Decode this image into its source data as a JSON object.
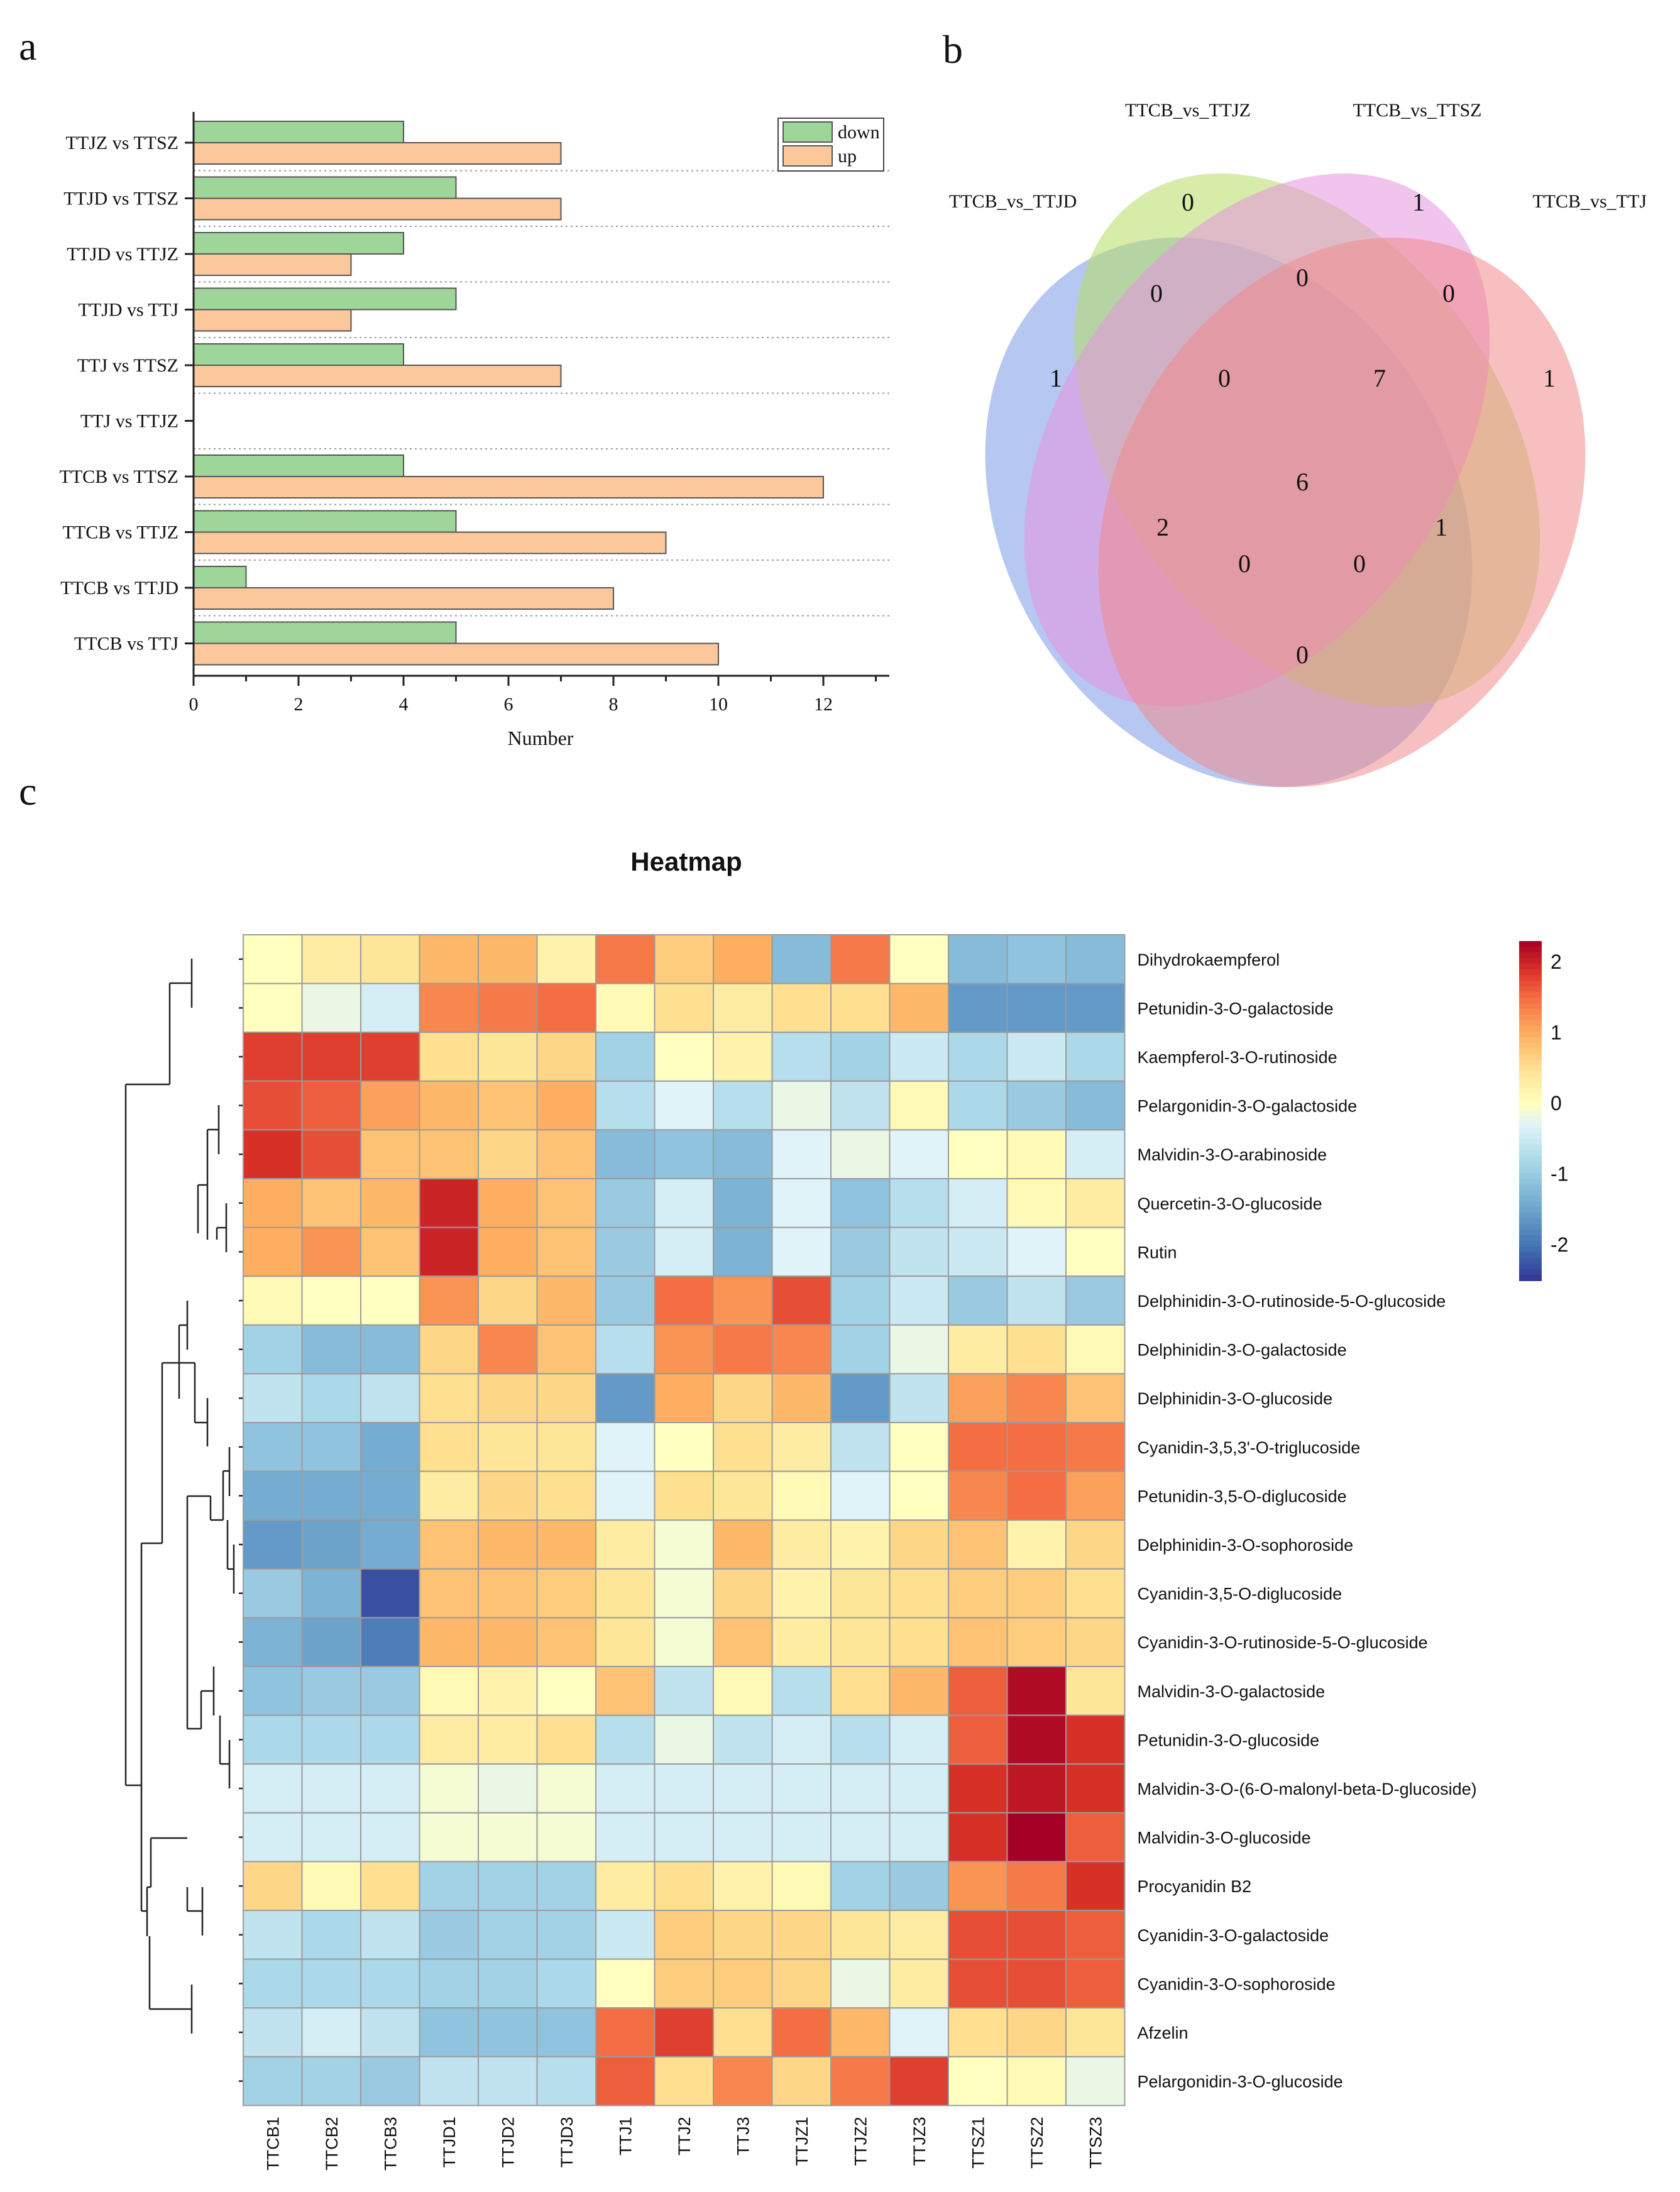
{
  "panels": {
    "a": "a",
    "b": "b",
    "c": "c"
  },
  "chart_data": [
    {
      "type": "bar",
      "orientation": "horizontal",
      "panel": "a",
      "title": "",
      "xlabel": "Number",
      "ylabel": "",
      "xlim": [
        0,
        13
      ],
      "xticks": [
        "0",
        "2",
        "4",
        "6",
        "8",
        "10",
        "12"
      ],
      "categories": [
        "TTJZ vs TTSZ",
        "TTJD vs TTSZ",
        "TTJD vs TTJZ",
        "TTJD vs TTJ",
        "TTJ vs TTSZ",
        "TTJ vs TTJZ",
        "TTCB vs TTSZ",
        "TTCB vs TTJZ",
        "TTCB vs TTJD",
        "TTCB vs TTJ"
      ],
      "series": [
        {
          "name": "down",
          "color": "#9ed69a",
          "values": [
            4,
            5,
            4,
            5,
            4,
            0,
            4,
            5,
            1,
            5
          ]
        },
        {
          "name": "up",
          "color": "#fbc79b",
          "values": [
            7,
            7,
            3,
            3,
            7,
            0,
            12,
            9,
            8,
            10
          ]
        }
      ],
      "legend": "top-right"
    },
    {
      "type": "venn",
      "panel": "b",
      "sets": [
        {
          "name": "TTCB_vs_TTJD",
          "color": "#7a9ae8"
        },
        {
          "name": "TTCB_vs_TTJZ",
          "color": "#b6dc62"
        },
        {
          "name": "TTCB_vs_TTSZ",
          "color": "#e594e0"
        },
        {
          "name": "TTCB_vs_TTJ",
          "color": "#f08a8c"
        }
      ],
      "regions": [
        {
          "id": "only_jz",
          "value": "0"
        },
        {
          "id": "only_sz",
          "value": "1"
        },
        {
          "id": "only_jd",
          "value": "1"
        },
        {
          "id": "only_j",
          "value": "1"
        },
        {
          "id": "jd_jz",
          "value": "0"
        },
        {
          "id": "jz_sz",
          "value": "0"
        },
        {
          "id": "sz_j",
          "value": "0"
        },
        {
          "id": "jd_jz_sz",
          "value": "0"
        },
        {
          "id": "jz_sz_j",
          "value": "7"
        },
        {
          "id": "all4",
          "value": "6"
        },
        {
          "id": "jd_sz",
          "value": "2"
        },
        {
          "id": "jz_j",
          "value": "1"
        },
        {
          "id": "jd_sz_j",
          "value": "0"
        },
        {
          "id": "jd_jz_j",
          "value": "0"
        },
        {
          "id": "jd_j",
          "value": "0"
        }
      ]
    },
    {
      "type": "heatmap",
      "panel": "c",
      "title": "Heatmap",
      "columns": [
        "TTCB1",
        "TTCB2",
        "TTCB3",
        "TTJD1",
        "TTJD2",
        "TTJD3",
        "TTJ1",
        "TTJ2",
        "TTJ3",
        "TTJZ1",
        "TTJZ2",
        "TTJZ3",
        "TTSZ1",
        "TTSZ2",
        "TTSZ3"
      ],
      "rows": [
        "Dihydrokaempferol",
        "Petunidin-3-O-galactoside",
        "Kaempferol-3-O-rutinoside",
        "Pelargonidin-3-O-galactoside",
        "Malvidin-3-O-arabinoside",
        "Quercetin-3-O-glucoside",
        "Rutin",
        "Delphinidin-3-O-rutinoside-5-O-glucoside",
        "Delphinidin-3-O-galactoside",
        "Delphinidin-3-O-glucoside",
        "Cyanidin-3,5,3'-O-triglucoside",
        "Petunidin-3,5-O-diglucoside",
        "Delphinidin-3-O-sophoroside",
        "Cyanidin-3,5-O-diglucoside",
        "Cyanidin-3-O-rutinoside-5-O-glucoside",
        "Malvidin-3-O-galactoside",
        "Petunidin-3-O-glucoside",
        "Malvidin-3-O-(6-O-malonyl-beta-D-glucoside)",
        "Malvidin-3-O-glucoside",
        "Procyanidin B2",
        "Cyanidin-3-O-galactoside",
        "Cyanidin-3-O-sophoroside",
        "Afzelin",
        "Pelargonidin-3-O-glucoside"
      ],
      "values": [
        [
          0.0,
          0.3,
          0.4,
          0.9,
          0.9,
          0.2,
          1.4,
          0.7,
          1.0,
          -1.2,
          1.4,
          0.0,
          -1.2,
          -1.1,
          -1.2
        ],
        [
          0.0,
          -0.2,
          -0.4,
          1.3,
          1.4,
          1.5,
          0.1,
          0.5,
          0.3,
          0.5,
          0.5,
          0.9,
          -1.6,
          -1.6,
          -1.6
        ],
        [
          1.8,
          1.8,
          1.8,
          0.5,
          0.4,
          0.6,
          -0.9,
          0.0,
          0.2,
          -0.7,
          -0.9,
          -0.5,
          -0.8,
          -0.5,
          -0.8
        ],
        [
          1.7,
          1.6,
          1.1,
          0.9,
          0.8,
          1.0,
          -0.7,
          -0.3,
          -0.7,
          -0.2,
          -0.6,
          0.1,
          -0.8,
          -1.0,
          -1.2
        ],
        [
          1.9,
          1.7,
          0.8,
          0.8,
          0.6,
          0.8,
          -1.2,
          -1.1,
          -1.2,
          -0.3,
          -0.2,
          -0.3,
          0.0,
          0.1,
          -0.4
        ],
        [
          1.0,
          0.8,
          0.9,
          2.0,
          1.0,
          0.8,
          -1.0,
          -0.4,
          -1.3,
          -0.3,
          -1.1,
          -0.7,
          -0.4,
          0.1,
          0.3
        ],
        [
          1.0,
          1.2,
          0.8,
          2.0,
          1.0,
          0.8,
          -1.0,
          -0.4,
          -1.3,
          -0.3,
          -1.0,
          -0.6,
          -0.5,
          -0.3,
          0.0
        ],
        [
          0.1,
          0.0,
          0.0,
          1.2,
          0.6,
          0.9,
          -1.0,
          1.5,
          1.2,
          1.7,
          -0.9,
          -0.5,
          -1.0,
          -0.6,
          -1.0
        ],
        [
          -0.9,
          -1.2,
          -1.2,
          0.6,
          1.3,
          0.8,
          -0.7,
          1.2,
          1.4,
          1.3,
          -0.9,
          -0.2,
          0.3,
          0.5,
          0.1
        ],
        [
          -0.6,
          -0.8,
          -0.6,
          0.5,
          0.6,
          0.6,
          -1.6,
          1.0,
          0.6,
          0.9,
          -1.6,
          -0.6,
          1.1,
          1.3,
          0.8
        ],
        [
          -1.1,
          -1.1,
          -1.4,
          0.5,
          0.4,
          0.4,
          -0.3,
          0.0,
          0.5,
          0.3,
          -0.6,
          0.0,
          1.5,
          1.5,
          1.4
        ],
        [
          -1.4,
          -1.4,
          -1.4,
          0.3,
          0.6,
          0.5,
          -0.3,
          0.5,
          0.4,
          0.1,
          -0.3,
          0.0,
          1.3,
          1.5,
          1.1
        ],
        [
          -1.6,
          -1.5,
          -1.4,
          0.8,
          0.9,
          0.9,
          0.3,
          -0.1,
          0.9,
          0.3,
          0.2,
          0.6,
          0.8,
          0.2,
          0.6
        ],
        [
          -1.0,
          -1.3,
          -2.3,
          0.8,
          0.8,
          0.7,
          0.4,
          -0.1,
          0.6,
          0.2,
          0.4,
          0.5,
          0.7,
          0.7,
          0.5
        ],
        [
          -1.3,
          -1.5,
          -1.9,
          0.9,
          0.9,
          0.8,
          0.4,
          -0.1,
          0.8,
          0.3,
          0.4,
          0.5,
          0.8,
          0.7,
          0.6
        ],
        [
          -1.1,
          -1.0,
          -1.0,
          0.1,
          0.2,
          0.0,
          0.8,
          -0.6,
          0.1,
          -0.7,
          0.5,
          0.9,
          1.6,
          2.2,
          0.4
        ],
        [
          -0.8,
          -0.8,
          -0.8,
          0.3,
          0.3,
          0.5,
          -0.7,
          -0.2,
          -0.6,
          -0.4,
          -0.7,
          -0.4,
          1.6,
          2.2,
          1.9
        ],
        [
          -0.4,
          -0.4,
          -0.4,
          -0.1,
          -0.2,
          -0.1,
          -0.4,
          -0.4,
          -0.4,
          -0.4,
          -0.4,
          -0.4,
          1.9,
          2.1,
          1.9
        ],
        [
          -0.4,
          -0.4,
          -0.4,
          -0.1,
          -0.1,
          -0.1,
          -0.4,
          -0.4,
          -0.4,
          -0.4,
          -0.4,
          -0.4,
          1.9,
          2.3,
          1.6
        ],
        [
          0.6,
          0.1,
          0.5,
          -0.9,
          -0.9,
          -0.9,
          0.3,
          0.5,
          0.2,
          0.1,
          -0.9,
          -1.0,
          1.2,
          1.4,
          1.9
        ],
        [
          -0.6,
          -0.8,
          -0.6,
          -1.0,
          -0.9,
          -0.9,
          -0.5,
          0.7,
          0.6,
          0.6,
          0.4,
          0.3,
          1.7,
          1.7,
          1.6
        ],
        [
          -0.8,
          -0.8,
          -0.8,
          -0.9,
          -0.9,
          -0.8,
          0.0,
          0.7,
          0.7,
          0.6,
          -0.2,
          0.3,
          1.7,
          1.7,
          1.6
        ],
        [
          -0.6,
          -0.4,
          -0.6,
          -1.1,
          -1.1,
          -1.1,
          1.5,
          1.8,
          0.5,
          1.5,
          0.9,
          -0.3,
          0.5,
          0.6,
          0.4
        ],
        [
          -0.9,
          -0.9,
          -1.0,
          -0.6,
          -0.6,
          -0.7,
          1.6,
          0.5,
          1.3,
          0.6,
          1.4,
          1.8,
          0.0,
          0.1,
          -0.2
        ]
      ],
      "colorbar": {
        "ticks": [
          "2",
          "1",
          "0",
          "-1",
          "-2"
        ],
        "range": [
          -2.5,
          2.3
        ]
      }
    }
  ]
}
